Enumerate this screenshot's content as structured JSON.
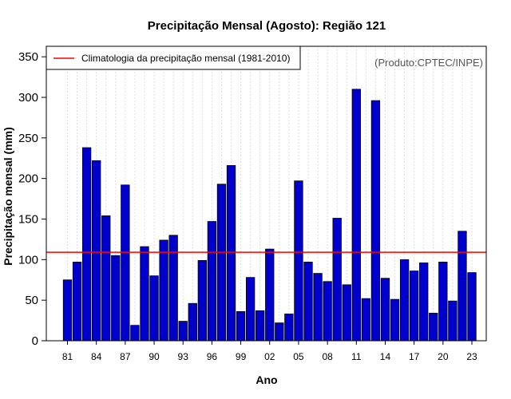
{
  "chart_data": {
    "type": "bar",
    "title": "Precipitação Mensal (Agosto): Região 121",
    "xlabel": "Ano",
    "ylabel": "Precipitação mensal (mm)",
    "ylim": [
      0,
      360
    ],
    "yticks": [
      0,
      50,
      100,
      150,
      200,
      250,
      300,
      350
    ],
    "categories": [
      "1981",
      "1982",
      "1983",
      "1984",
      "1985",
      "1986",
      "1987",
      "1988",
      "1989",
      "1990",
      "1991",
      "1992",
      "1993",
      "1994",
      "1995",
      "1996",
      "1997",
      "1998",
      "1999",
      "2000",
      "2001",
      "2002",
      "2003",
      "2004",
      "2005",
      "2006",
      "2007",
      "2008",
      "2009",
      "2010",
      "2011",
      "2012",
      "2013",
      "2014",
      "2015",
      "2016",
      "2017",
      "2018",
      "2019",
      "2020",
      "2021",
      "2022",
      "2023"
    ],
    "tick_labels": [
      "81",
      "84",
      "87",
      "90",
      "93",
      "96",
      "99",
      "02",
      "05",
      "08",
      "11",
      "14",
      "17",
      "20",
      "23"
    ],
    "values": [
      75,
      97,
      238,
      222,
      154,
      105,
      192,
      19,
      116,
      80,
      124,
      130,
      24,
      46,
      99,
      147,
      193,
      216,
      36,
      78,
      37,
      113,
      22,
      33,
      197,
      97,
      83,
      73,
      151,
      69,
      310,
      52,
      296,
      77,
      51,
      100,
      86,
      96,
      34,
      97,
      49,
      135,
      84
    ],
    "bar_color": "#0000cd",
    "climatology": {
      "label": "Climatologia da precipitação mensal (1981-2010)",
      "value": 109,
      "color": "#ff0000"
    },
    "legend_position": "top-left",
    "credit": "(Produto:CPTEC/INPE)"
  }
}
